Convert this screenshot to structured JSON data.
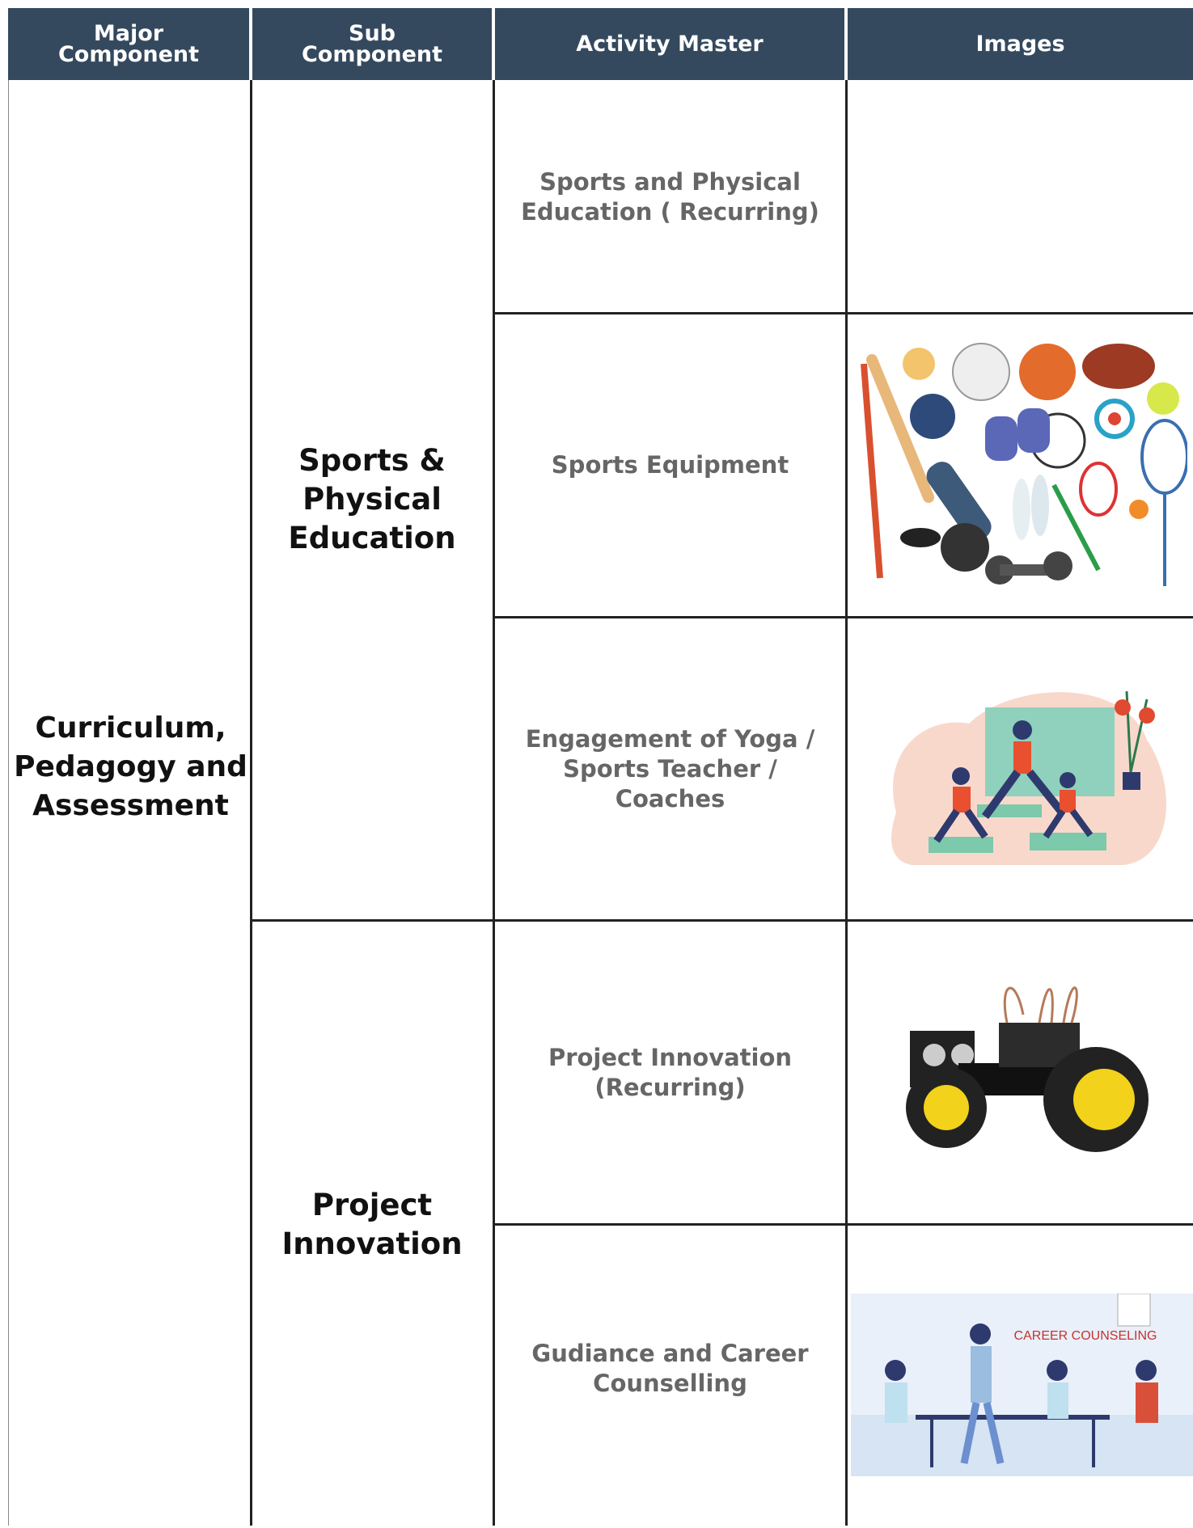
{
  "header": [
    "Major Component",
    "Sub Component",
    "Activity Master",
    "Images"
  ],
  "major_component": "Curriculum, Pedagogy and Assessment",
  "sub_components": [
    "Sports & Physical Education",
    "Project Innovation"
  ],
  "activities": [
    "Sports and Physical Education ( Recurring)",
    "Sports Equipment",
    "Engagement of Yoga / Sports Teacher / Coaches",
    "Project Innovation (Recurring)",
    "Gudiance and Career Counselling"
  ],
  "image_caption": "CAREER COUNSELING"
}
